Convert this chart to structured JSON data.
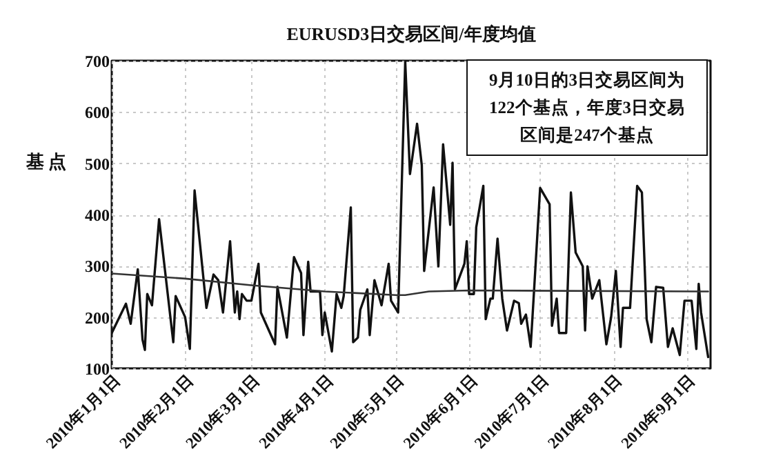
{
  "chart_data": {
    "type": "line",
    "title": "EURUSD3日交易区间/年度均值",
    "ylabel": "基点",
    "annotations": [
      "9月10日的3日交易区间为122个基点，年度3日交易区间是247个基点"
    ],
    "xlim": [
      "2010-01-01",
      "2010-09-11"
    ],
    "ylim": [
      100,
      700
    ],
    "yticks": [
      100,
      200,
      300,
      400,
      500,
      600,
      700
    ],
    "xticks": [
      {
        "value": "2010-01-01",
        "label": "2010年1月1日"
      },
      {
        "value": "2010-02-01",
        "label": "2010年2月1日"
      },
      {
        "value": "2010-03-01",
        "label": "2010年3月1日"
      },
      {
        "value": "2010-04-01",
        "label": "2010年4月1日"
      },
      {
        "value": "2010-05-01",
        "label": "2010年5月1日"
      },
      {
        "value": "2010-06-01",
        "label": "2010年6月1日"
      },
      {
        "value": "2010-07-01",
        "label": "2010年7月1日"
      },
      {
        "value": "2010-08-01",
        "label": "2010年8月1日"
      },
      {
        "value": "2010-09-01",
        "label": "2010年9月1日"
      }
    ],
    "grid": true,
    "legend": false,
    "marker": "none",
    "line_style": "solid",
    "series": [
      {
        "color": "#111111",
        "x": [
          "2010-01-01",
          "2010-01-07",
          "2010-01-09",
          "2010-01-12",
          "2010-01-14",
          "2010-01-15",
          "2010-01-16",
          "2010-01-18",
          "2010-01-21",
          "2010-01-27",
          "2010-01-28",
          "2010-02-01",
          "2010-02-03",
          "2010-02-05",
          "2010-02-10",
          "2010-02-13",
          "2010-02-15",
          "2010-02-17",
          "2010-02-20",
          "2010-02-22",
          "2010-02-23",
          "2010-02-24",
          "2010-02-25",
          "2010-02-27",
          "2010-03-01",
          "2010-03-04",
          "2010-03-05",
          "2010-03-11",
          "2010-03-12",
          "2010-03-16",
          "2010-03-19",
          "2010-03-22",
          "2010-03-23",
          "2010-03-25",
          "2010-03-26",
          "2010-03-30",
          "2010-03-31",
          "2010-04-01",
          "2010-04-04",
          "2010-04-06",
          "2010-04-08",
          "2010-04-09",
          "2010-04-12",
          "2010-04-13",
          "2010-04-15",
          "2010-04-16",
          "2010-04-19",
          "2010-04-20",
          "2010-04-22",
          "2010-04-25",
          "2010-04-28",
          "2010-04-29",
          "2010-05-02",
          "2010-05-05",
          "2010-05-07",
          "2010-05-10",
          "2010-05-12",
          "2010-05-13",
          "2010-05-17",
          "2010-05-19",
          "2010-05-21",
          "2010-05-24",
          "2010-05-25",
          "2010-05-26",
          "2010-05-30",
          "2010-05-31",
          "2010-06-01",
          "2010-06-03",
          "2010-06-04",
          "2010-06-07",
          "2010-06-08",
          "2010-06-10",
          "2010-06-11",
          "2010-06-13",
          "2010-06-15",
          "2010-06-17",
          "2010-06-20",
          "2010-06-22",
          "2010-06-23",
          "2010-06-25",
          "2010-06-27",
          "2010-06-28",
          "2010-07-01",
          "2010-07-05",
          "2010-07-06",
          "2010-07-08",
          "2010-07-09",
          "2010-07-12",
          "2010-07-14",
          "2010-07-16",
          "2010-07-19",
          "2010-07-20",
          "2010-07-21",
          "2010-07-23",
          "2010-07-26",
          "2010-07-29",
          "2010-07-31",
          "2010-08-02",
          "2010-08-04",
          "2010-08-05",
          "2010-08-08",
          "2010-08-11",
          "2010-08-13",
          "2010-08-15",
          "2010-08-17",
          "2010-08-19",
          "2010-08-22",
          "2010-08-24",
          "2010-08-26",
          "2010-08-29",
          "2010-08-31",
          "2010-09-03",
          "2010-09-05",
          "2010-09-06",
          "2010-09-07",
          "2010-09-10"
        ],
        "values": [
          169,
          226,
          187,
          293,
          156,
          136,
          245,
          223,
          391,
          151,
          241,
          200,
          138,
          447,
          218,
          283,
          272,
          209,
          348,
          209,
          250,
          196,
          245,
          232,
          232,
          304,
          209,
          147,
          259,
          160,
          317,
          286,
          165,
          308,
          250,
          250,
          165,
          209,
          133,
          245,
          218,
          241,
          414,
          151,
          160,
          214,
          254,
          165,
          272,
          223,
          304,
          232,
          209,
          698,
          479,
          577,
          496,
          290,
          453,
          299,
          537,
          380,
          501,
          254,
          304,
          348,
          245,
          245,
          375,
          456,
          196,
          236,
          236,
          353,
          236,
          174,
          232,
          227,
          187,
          205,
          142,
          218,
          452,
          420,
          183,
          236,
          169,
          169,
          443,
          326,
          299,
          174,
          299,
          236,
          272,
          147,
          200,
          290,
          142,
          218,
          218,
          456,
          443,
          196,
          151,
          259,
          257,
          142,
          178,
          126,
          232,
          232,
          138,
          265,
          209,
          122
        ]
      },
      {
        "color": "#333333",
        "x": [
          "2010-01-01",
          "2010-02-01",
          "2010-03-01",
          "2010-04-01",
          "2010-05-01",
          "2010-05-05",
          "2010-05-15",
          "2010-06-01",
          "2010-09-10"
        ],
        "values": [
          285,
          275,
          262,
          250,
          243,
          243,
          250,
          252,
          250
        ]
      }
    ]
  }
}
